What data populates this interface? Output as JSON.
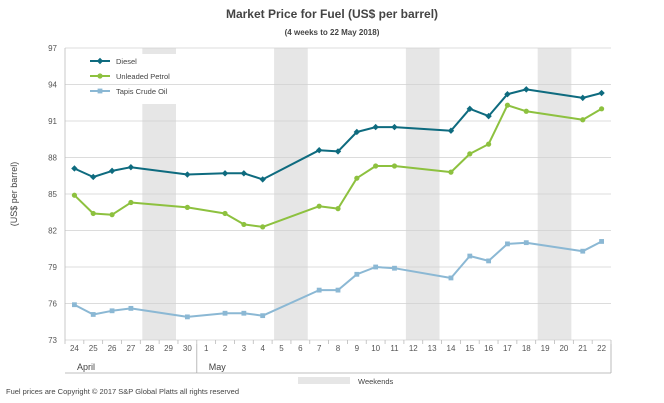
{
  "chart_data": {
    "type": "line",
    "title": "Market Price for Fuel (US$ per barrel)",
    "subtitle": "(4 weeks to 22 May 2018)",
    "ylabel": "(US$ per barrel)",
    "xlabel": "",
    "ylim": [
      73,
      97
    ],
    "yticks": [
      73,
      76,
      79,
      82,
      85,
      88,
      91,
      94,
      97
    ],
    "grid": true,
    "legend_position": "top-left",
    "categories": [
      "24",
      "25",
      "26",
      "27",
      "28",
      "29",
      "30",
      "1",
      "2",
      "3",
      "4",
      "5",
      "6",
      "7",
      "8",
      "9",
      "10",
      "11",
      "12",
      "13",
      "14",
      "15",
      "16",
      "17",
      "18",
      "19",
      "20",
      "21",
      "22"
    ],
    "month_labels": [
      {
        "label": "April",
        "start_index": 0
      },
      {
        "label": "May",
        "start_index": 7
      }
    ],
    "weekends": [
      [
        4,
        5
      ],
      [
        11,
        12
      ],
      [
        18,
        19
      ],
      [
        25,
        26
      ]
    ],
    "weekend_label": "Weekends",
    "series": [
      {
        "name": "Diesel",
        "color": "#0e6b7f",
        "marker": "diamond",
        "values": [
          87.1,
          86.4,
          86.9,
          87.2,
          null,
          null,
          86.6,
          null,
          86.7,
          86.7,
          86.2,
          null,
          null,
          88.6,
          88.5,
          90.1,
          90.5,
          90.5,
          null,
          null,
          90.2,
          92.0,
          91.4,
          93.2,
          93.6,
          null,
          null,
          92.9,
          93.3
        ]
      },
      {
        "name": "Unleaded Petrol",
        "color": "#8dc13f",
        "marker": "circle",
        "values": [
          84.9,
          83.4,
          83.3,
          84.3,
          null,
          null,
          83.9,
          null,
          83.4,
          82.5,
          82.3,
          null,
          null,
          84.0,
          83.8,
          86.3,
          87.3,
          87.3,
          null,
          null,
          86.8,
          88.3,
          89.1,
          92.3,
          91.8,
          null,
          null,
          91.1,
          92.0
        ]
      },
      {
        "name": "Tapis Crude Oil",
        "color": "#8bb8d4",
        "marker": "square",
        "values": [
          75.9,
          75.1,
          75.4,
          75.6,
          null,
          null,
          74.9,
          null,
          75.2,
          75.2,
          75.0,
          null,
          null,
          77.1,
          77.1,
          78.4,
          79.0,
          78.9,
          null,
          null,
          78.1,
          79.9,
          79.5,
          80.9,
          81.0,
          null,
          null,
          80.3,
          81.1
        ]
      }
    ]
  },
  "footer": {
    "copyright": "Fuel prices are Copyright © 2017 S&P Global Platts all rights reserved"
  }
}
